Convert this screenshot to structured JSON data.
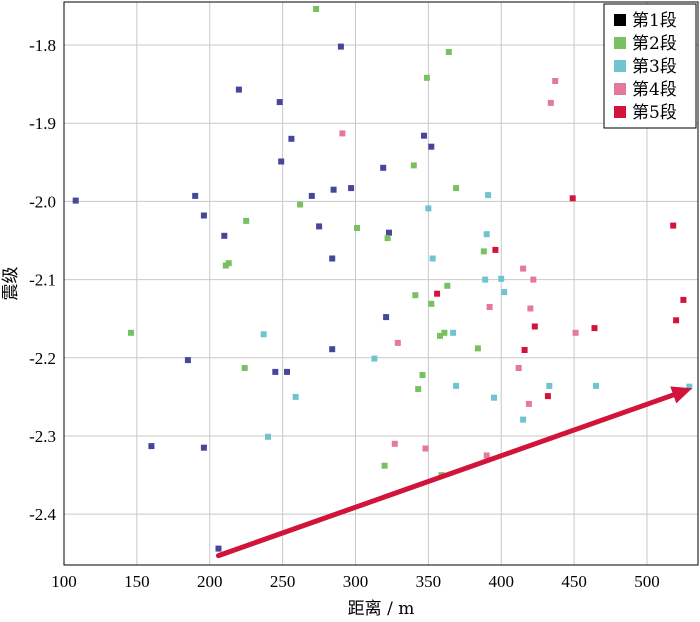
{
  "chart_data": {
    "type": "scatter",
    "xlabel": "距离 / m",
    "ylabel": "震级",
    "xlim": [
      100,
      535
    ],
    "ylim": [
      -2.465,
      -1.745
    ],
    "x_ticks": [
      100,
      150,
      200,
      250,
      300,
      350,
      400,
      450,
      500
    ],
    "y_ticks": [
      -1.8,
      -1.9,
      -2.0,
      -2.1,
      -2.2,
      -2.3,
      -2.4
    ],
    "grid": true,
    "legend_position": "top-right",
    "series": [
      {
        "name": "第1段",
        "color": "#000000",
        "plot_color": "#46469a",
        "points": [
          [
            108,
            -1.999
          ],
          [
            160,
            -2.313
          ],
          [
            185,
            -2.203
          ],
          [
            190,
            -1.993
          ],
          [
            196,
            -2.018
          ],
          [
            196,
            -2.315
          ],
          [
            206,
            -2.444
          ],
          [
            210,
            -2.044
          ],
          [
            220,
            -1.857
          ],
          [
            245,
            -2.218
          ],
          [
            248,
            -1.873
          ],
          [
            249,
            -1.949
          ],
          [
            253,
            -2.218
          ],
          [
            256,
            -1.92
          ],
          [
            270,
            -1.993
          ],
          [
            275,
            -2.032
          ],
          [
            284,
            -2.073
          ],
          [
            284,
            -2.189
          ],
          [
            285,
            -1.985
          ],
          [
            290,
            -1.802
          ],
          [
            297,
            -1.983
          ],
          [
            319,
            -1.957
          ],
          [
            321,
            -2.148
          ],
          [
            323,
            -2.04
          ],
          [
            347,
            -1.916
          ],
          [
            352,
            -1.93
          ]
        ]
      },
      {
        "name": "第2段",
        "color": "#78c060",
        "plot_color": "#78c060",
        "points": [
          [
            146,
            -2.168
          ],
          [
            211,
            -2.082
          ],
          [
            213,
            -2.079
          ],
          [
            224,
            -2.213
          ],
          [
            225,
            -2.025
          ],
          [
            262,
            -2.004
          ],
          [
            273,
            -1.754
          ],
          [
            301,
            -2.034
          ],
          [
            320,
            -2.338
          ],
          [
            322,
            -2.047
          ],
          [
            340,
            -1.954
          ],
          [
            341,
            -2.12
          ],
          [
            343,
            -2.24
          ],
          [
            346,
            -2.222
          ],
          [
            349,
            -1.842
          ],
          [
            352,
            -2.131
          ],
          [
            358,
            -2.172
          ],
          [
            359,
            -2.35
          ],
          [
            361,
            -2.168
          ],
          [
            363,
            -2.108
          ],
          [
            364,
            -1.809
          ],
          [
            369,
            -1.983
          ],
          [
            384,
            -2.188
          ],
          [
            388,
            -2.064
          ]
        ]
      },
      {
        "name": "第3段",
        "color": "#70c4d0",
        "plot_color": "#70c4d0",
        "points": [
          [
            237,
            -2.17
          ],
          [
            240,
            -2.301
          ],
          [
            259,
            -2.25
          ],
          [
            313,
            -2.201
          ],
          [
            350,
            -2.009
          ],
          [
            353,
            -2.073
          ],
          [
            367,
            -2.168
          ],
          [
            369,
            -2.236
          ],
          [
            389,
            -2.1
          ],
          [
            390,
            -2.042
          ],
          [
            391,
            -1.992
          ],
          [
            395,
            -2.251
          ],
          [
            400,
            -2.099
          ],
          [
            402,
            -2.116
          ],
          [
            415,
            -2.279
          ],
          [
            433,
            -2.236
          ],
          [
            465,
            -2.236
          ],
          [
            529,
            -2.237
          ]
        ]
      },
      {
        "name": "第4段",
        "color": "#e5789e",
        "plot_color": "#e5789e",
        "points": [
          [
            291,
            -1.913
          ],
          [
            327,
            -2.31
          ],
          [
            329,
            -2.181
          ],
          [
            348,
            -2.316
          ],
          [
            390,
            -2.325
          ],
          [
            392,
            -2.135
          ],
          [
            412,
            -2.213
          ],
          [
            415,
            -2.086
          ],
          [
            419,
            -2.259
          ],
          [
            420,
            -2.137
          ],
          [
            422,
            -2.1
          ],
          [
            434,
            -1.874
          ],
          [
            437,
            -1.846
          ],
          [
            451,
            -2.168
          ]
        ]
      },
      {
        "name": "第5段",
        "color": "#d2143a",
        "plot_color": "#d2143a",
        "points": [
          [
            356,
            -2.118
          ],
          [
            396,
            -2.062
          ],
          [
            416,
            -2.19
          ],
          [
            423,
            -2.16
          ],
          [
            432,
            -2.249
          ],
          [
            449,
            -1.996
          ],
          [
            464,
            -2.162
          ],
          [
            518,
            -2.031
          ],
          [
            520,
            -2.152
          ],
          [
            525,
            -2.126
          ]
        ]
      }
    ],
    "annotation_arrow": {
      "color": "#d2143a",
      "from": [
        206,
        -2.453
      ],
      "to": [
        531,
        -2.239
      ]
    }
  }
}
